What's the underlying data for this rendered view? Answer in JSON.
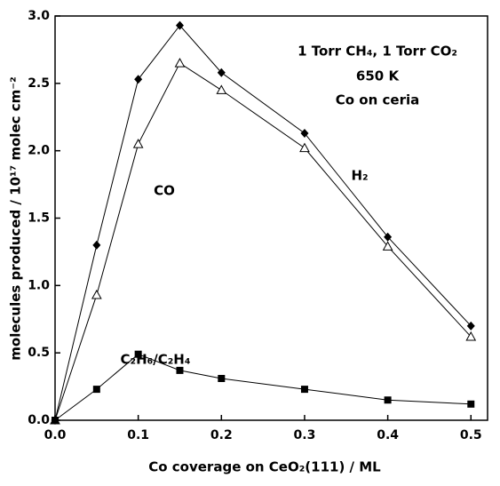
{
  "chart_data": {
    "type": "line",
    "xlabel": "Co coverage on CeO₂(111) / ML",
    "ylabel": "molecules produced / 10¹⁷ molec cm⁻²",
    "annotations": [
      "1 Torr CH₄, 1 Torr CO₂",
      "650 K",
      "Co on ceria"
    ],
    "x": [
      0,
      0.05,
      0.1,
      0.15,
      0.2,
      0.3,
      0.4,
      0.5
    ],
    "series": [
      {
        "name": "CO",
        "color": "#000000",
        "marker": "diamond",
        "values": [
          0,
          1.3,
          2.53,
          2.93,
          2.58,
          2.13,
          1.36,
          0.7
        ]
      },
      {
        "name": "H₂",
        "color": "#000000",
        "marker": "triangle-open",
        "values": [
          0,
          0.93,
          2.05,
          2.65,
          2.45,
          2.02,
          1.29,
          0.62
        ]
      },
      {
        "name": "C₂H₆/C₂H₄",
        "color": "#000000",
        "marker": "square",
        "values": [
          0,
          0.23,
          0.49,
          0.37,
          0.31,
          0.23,
          0.15,
          0.12
        ]
      }
    ],
    "xlim": [
      0,
      0.52
    ],
    "ylim": [
      0,
      3.0
    ],
    "xticks": [
      {
        "value": 0,
        "label": "0.0"
      },
      0.1,
      0.2,
      0.3,
      0.4,
      0.5
    ],
    "yticks": [
      {
        "value": 0,
        "label": "0.0"
      },
      0.5,
      {
        "value": 1,
        "label": "1.0"
      },
      1.5,
      {
        "value": 2,
        "label": "2.0"
      },
      2.5,
      {
        "value": 3,
        "label": "3.0"
      }
    ]
  }
}
